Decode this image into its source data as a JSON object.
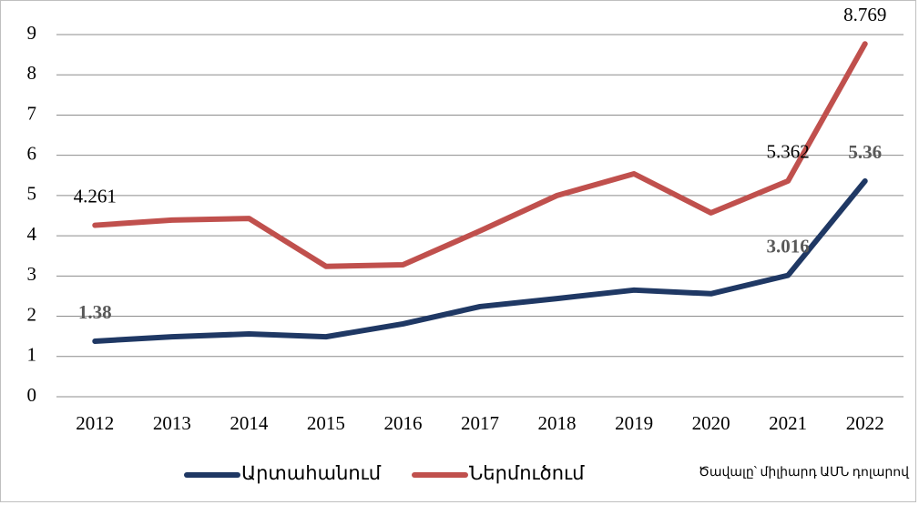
{
  "chart_data": {
    "type": "line",
    "categories": [
      "2012",
      "2013",
      "2014",
      "2015",
      "2016",
      "2017",
      "2018",
      "2019",
      "2020",
      "2021",
      "2022"
    ],
    "series": [
      {
        "name": "Արտահանում",
        "color": "#1f3864",
        "values": [
          1.38,
          1.49,
          1.56,
          1.49,
          1.81,
          2.24,
          2.44,
          2.65,
          2.56,
          3.016,
          5.36
        ],
        "value_labels": [
          "1.38",
          null,
          null,
          null,
          null,
          null,
          null,
          null,
          null,
          "3.016",
          "5.36"
        ]
      },
      {
        "name": "Ներմուծում",
        "color": "#c0504d",
        "values": [
          4.261,
          4.39,
          4.43,
          3.24,
          3.28,
          4.12,
          5.0,
          5.54,
          4.57,
          5.362,
          8.769
        ],
        "value_labels": [
          "4.261",
          null,
          null,
          null,
          null,
          null,
          null,
          null,
          null,
          "5.362",
          "8.769"
        ]
      }
    ],
    "ylim": [
      0,
      9
    ],
    "yticks": [
      0,
      1,
      2,
      3,
      4,
      5,
      6,
      7,
      8,
      9
    ],
    "grid": true,
    "legend": "bottom",
    "annotation": "Ծավալը՝ միլիարդ ԱՄՆ դոլարով"
  }
}
